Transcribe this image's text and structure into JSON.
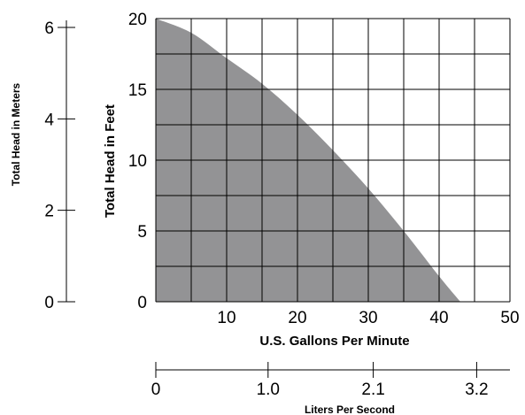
{
  "chart_data": {
    "type": "area",
    "title": "",
    "xlabel": "U.S. Gallons Per Minute",
    "ylabel": "Total Head in Feet",
    "xlim": [
      0,
      50
    ],
    "ylim": [
      0,
      20
    ],
    "x_ticks": [
      "10",
      "20",
      "30",
      "40",
      "50"
    ],
    "y_ticks": [
      "0",
      "5",
      "10",
      "15",
      "20"
    ],
    "grid": true,
    "fill_color": "#939395",
    "series": [
      {
        "x": [
          0,
          5,
          10,
          15,
          20,
          25,
          30,
          35,
          40,
          43
        ],
        "values": [
          20,
          19.0,
          17.2,
          15.4,
          13.2,
          10.7,
          8.0,
          5.0,
          1.8,
          0
        ]
      }
    ],
    "secondary_y": {
      "label": "Total Head in Meters",
      "ticks": [
        "0",
        "2",
        "4",
        "6"
      ],
      "range": [
        0,
        6
      ]
    },
    "secondary_x": {
      "label": "Liters Per Second",
      "ticks": [
        {
          "label": "0",
          "gpm": 0
        },
        {
          "label": "1.0",
          "gpm": 15.85
        },
        {
          "label": "2.1",
          "gpm": 30.7
        },
        {
          "label": "3.2",
          "gpm": 45.3
        }
      ]
    }
  }
}
